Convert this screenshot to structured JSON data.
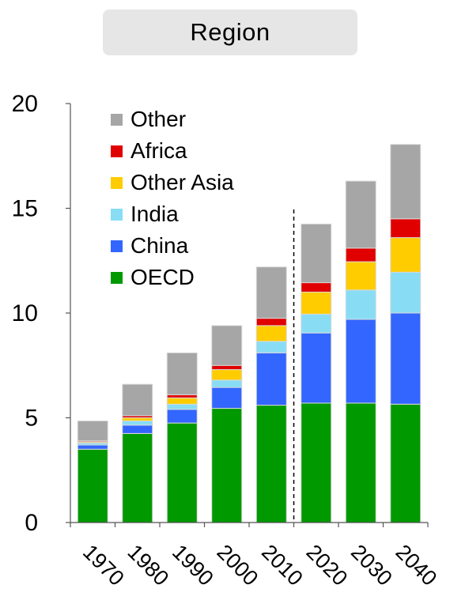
{
  "header": {
    "title": "Region"
  },
  "colors": {
    "OECD": "#009900",
    "China": "#3366ff",
    "India": "#88ddf5",
    "Other Asia": "#ffcc00",
    "Africa": "#e00000",
    "Other": "#a6a6a6",
    "axis": "#555555"
  },
  "chart_data": {
    "type": "bar",
    "stacked": true,
    "title": "Region",
    "xlabel": "",
    "ylabel": "",
    "categories": [
      "1970",
      "1980",
      "1990",
      "2000",
      "2010",
      "2020",
      "2030",
      "2040"
    ],
    "ylim": [
      0,
      20
    ],
    "yticks": [
      0,
      5,
      10,
      15,
      20
    ],
    "legend_position": "top-left",
    "projection_divider_between": [
      "2010",
      "2020"
    ],
    "series": [
      {
        "name": "OECD",
        "values": [
          3.5,
          4.25,
          4.75,
          5.45,
          5.6,
          5.7,
          5.7,
          5.65
        ]
      },
      {
        "name": "China",
        "values": [
          0.2,
          0.4,
          0.65,
          1.0,
          2.5,
          3.35,
          4.0,
          4.35
        ]
      },
      {
        "name": "India",
        "values": [
          0.1,
          0.2,
          0.25,
          0.35,
          0.55,
          0.9,
          1.4,
          1.95
        ]
      },
      {
        "name": "Other Asia",
        "values": [
          0.05,
          0.15,
          0.3,
          0.5,
          0.75,
          1.05,
          1.35,
          1.65
        ]
      },
      {
        "name": "Africa",
        "values": [
          0.05,
          0.1,
          0.15,
          0.2,
          0.35,
          0.45,
          0.65,
          0.9
        ]
      },
      {
        "name": "Other",
        "values": [
          0.95,
          1.5,
          2.0,
          1.9,
          2.45,
          2.8,
          3.2,
          3.55
        ]
      }
    ],
    "legend_order": [
      "Other",
      "Africa",
      "Other Asia",
      "India",
      "China",
      "OECD"
    ]
  }
}
